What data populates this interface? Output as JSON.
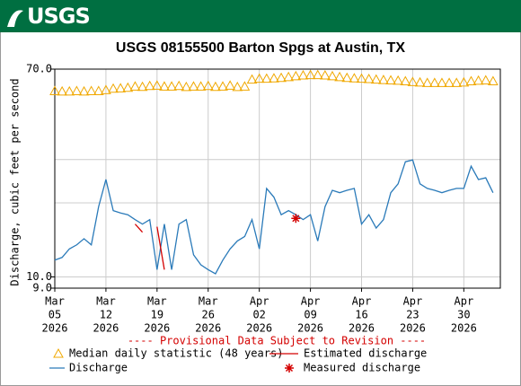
{
  "logo": "USGS",
  "chart_data": {
    "type": "line",
    "title": "USGS 08155500 Barton Spgs at Austin, TX",
    "ylabel": "Discharge, cubic feet per second",
    "notice": "---- Provisional Data Subject to Revision ----",
    "ylog": true,
    "ylim": [
      9,
      70
    ],
    "yticks": [
      {
        "value": 9,
        "label": "9.0"
      },
      {
        "value": 10,
        "label": "10.0"
      },
      {
        "value": 70,
        "label": "70.0"
      }
    ],
    "ygrid": [
      20,
      30
    ],
    "grid": true,
    "xlim": [
      "2026-03-05",
      "2026-05-05"
    ],
    "xticks": [
      {
        "value": "2026-03-05",
        "label": [
          "Mar",
          "05",
          "2026"
        ]
      },
      {
        "value": "2026-03-12",
        "label": [
          "Mar",
          "12",
          "2026"
        ]
      },
      {
        "value": "2026-03-19",
        "label": [
          "Mar",
          "19",
          "2026"
        ]
      },
      {
        "value": "2026-03-26",
        "label": [
          "Mar",
          "26",
          "2026"
        ]
      },
      {
        "value": "2026-04-02",
        "label": [
          "Apr",
          "02",
          "2026"
        ]
      },
      {
        "value": "2026-04-09",
        "label": [
          "Apr",
          "09",
          "2026"
        ]
      },
      {
        "value": "2026-04-16",
        "label": [
          "Apr",
          "16",
          "2026"
        ]
      },
      {
        "value": "2026-04-23",
        "label": [
          "Apr",
          "23",
          "2026"
        ]
      },
      {
        "value": "2026-04-30",
        "label": [
          "Apr",
          "30",
          "2026"
        ]
      }
    ],
    "x": [
      "2026-03-05",
      "2026-03-06",
      "2026-03-07",
      "2026-03-08",
      "2026-03-09",
      "2026-03-10",
      "2026-03-11",
      "2026-03-12",
      "2026-03-13",
      "2026-03-14",
      "2026-03-15",
      "2026-03-16",
      "2026-03-17",
      "2026-03-18",
      "2026-03-19",
      "2026-03-20",
      "2026-03-21",
      "2026-03-22",
      "2026-03-23",
      "2026-03-24",
      "2026-03-25",
      "2026-03-26",
      "2026-03-27",
      "2026-03-28",
      "2026-03-29",
      "2026-03-30",
      "2026-03-31",
      "2026-04-01",
      "2026-04-02",
      "2026-04-03",
      "2026-04-04",
      "2026-04-05",
      "2026-04-06",
      "2026-04-07",
      "2026-04-08",
      "2026-04-09",
      "2026-04-10",
      "2026-04-11",
      "2026-04-12",
      "2026-04-13",
      "2026-04-14",
      "2026-04-15",
      "2026-04-16",
      "2026-04-17",
      "2026-04-18",
      "2026-04-19",
      "2026-04-20",
      "2026-04-21",
      "2026-04-22",
      "2026-04-23",
      "2026-04-24",
      "2026-04-25",
      "2026-04-26",
      "2026-04-27",
      "2026-04-28",
      "2026-04-29",
      "2026-04-30",
      "2026-05-01",
      "2026-05-02",
      "2026-05-03",
      "2026-05-04"
    ],
    "series": [
      {
        "name": "Median daily statistic (48 years)",
        "color": "#f0a800",
        "marker": "triangle",
        "legend_column": 0,
        "values": [
          57,
          56.8,
          56.8,
          57,
          56.8,
          57,
          57,
          57.5,
          58.3,
          58.5,
          58.8,
          59.5,
          59.3,
          59.8,
          60,
          59.5,
          59.5,
          59.8,
          59.2,
          59.5,
          59.5,
          59.8,
          59.3,
          59.5,
          60,
          59.2,
          59.5,
          63.5,
          64,
          64,
          64.2,
          64.5,
          65,
          65.5,
          66,
          66.2,
          66.2,
          66,
          65.5,
          65,
          64.5,
          64.2,
          64,
          63.8,
          63.5,
          63.2,
          63,
          62.8,
          62.5,
          62,
          61.8,
          61.5,
          61.5,
          61.5,
          61.5,
          61.5,
          61.8,
          62.5,
          62.8,
          63,
          62.5
        ]
      },
      {
        "name": "Discharge",
        "color": "#2a7ab9",
        "marker": "line",
        "legend_column": 0,
        "values": [
          11.7,
          12,
          13,
          13.5,
          14.3,
          13.5,
          19.3,
          24.9,
          18.6,
          18.2,
          17.9,
          17.1,
          16.4,
          17.1,
          10.7,
          16.4,
          10.7,
          16.4,
          17.1,
          12.3,
          11.2,
          10.7,
          10.3,
          11.7,
          13,
          14,
          14.6,
          17.1,
          13,
          22.9,
          21.1,
          17.9,
          18.6,
          17.9,
          17.1,
          17.9,
          14,
          19.3,
          22.5,
          22,
          22.5,
          22.9,
          16.4,
          17.9,
          15.8,
          17.1,
          22,
          23.9,
          29.4,
          29.9,
          23.9,
          22.9,
          22.5,
          22,
          22.5,
          22.9,
          22.9,
          28.2,
          24.9,
          25.3,
          22
        ]
      },
      {
        "name": "Estimated discharge",
        "color": "#d40000",
        "marker": "line",
        "legend_column": 1,
        "values": [
          null,
          null,
          null,
          null,
          null,
          null,
          null,
          null,
          null,
          null,
          null,
          16.4,
          15.2,
          null,
          16,
          10.7,
          null,
          null,
          null,
          null,
          null,
          null,
          null,
          null,
          null,
          null,
          null,
          null,
          null,
          null,
          null,
          null,
          null,
          null,
          null,
          null,
          null,
          null,
          null,
          null,
          null,
          null,
          null,
          null,
          null,
          null,
          null,
          null,
          null,
          null,
          null,
          null,
          null,
          null,
          null,
          null,
          null,
          null,
          null,
          null,
          null
        ]
      },
      {
        "name": "Measured discharge",
        "color": "#d40000",
        "marker": "star",
        "legend_column": 1,
        "x": [
          "2026-04-07"
        ],
        "values": [
          17.3
        ]
      }
    ]
  }
}
